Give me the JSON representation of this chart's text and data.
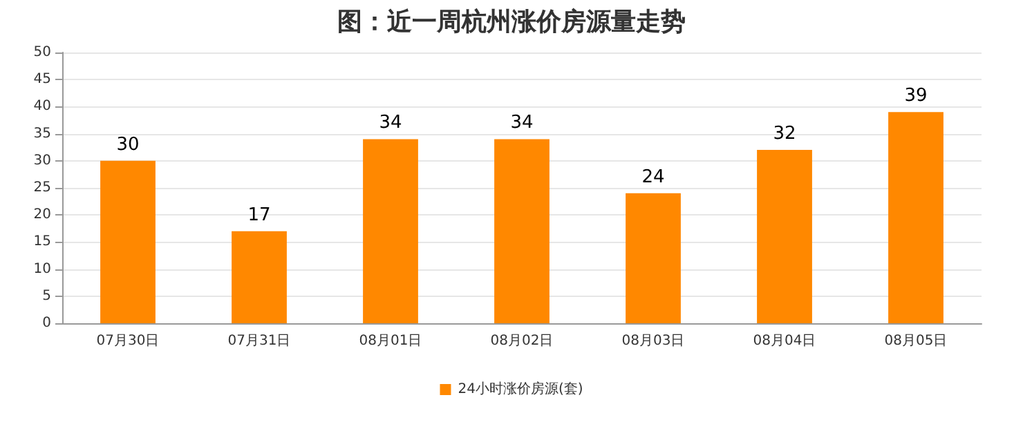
{
  "chart_data": {
    "type": "bar",
    "title": "图：近一周杭州涨价房源量走势",
    "categories": [
      "07月30日",
      "07月31日",
      "08月01日",
      "08月02日",
      "08月03日",
      "08月04日",
      "08月05日"
    ],
    "series": [
      {
        "name": "24小时涨价房源(套)",
        "color": "#ff8800",
        "values": [
          30,
          17,
          34,
          34,
          24,
          32,
          39
        ]
      }
    ],
    "ylim": [
      0,
      50
    ],
    "yticks": [
      0,
      5,
      10,
      15,
      20,
      25,
      30,
      35,
      40,
      45,
      50
    ],
    "grid": "y",
    "legend": "bottom",
    "data_labels": true
  }
}
